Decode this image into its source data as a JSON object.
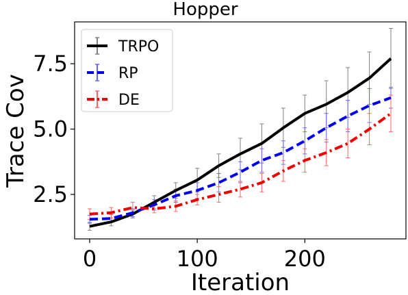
{
  "chart_data": {
    "type": "line",
    "title": "Hopper",
    "xlabel": "Iteration",
    "ylabel": "Trace Cov",
    "xlim": [
      -14,
      294
    ],
    "ylim": [
      0.8,
      9.1
    ],
    "xticks": [
      0,
      100,
      200
    ],
    "xtick_labels": [
      "0",
      "100",
      "200"
    ],
    "yticks": [
      2.5,
      5.0,
      7.5
    ],
    "ytick_labels": [
      "2.5",
      "5.0",
      "7.5"
    ],
    "grid": false,
    "legend_position": "top-left",
    "x": [
      0,
      20,
      40,
      60,
      80,
      100,
      120,
      140,
      160,
      180,
      200,
      220,
      240,
      260,
      280
    ],
    "series": [
      {
        "name": "TRPO",
        "color": "#000000",
        "errcolor": "#808080",
        "dash": "solid",
        "values": [
          1.28,
          1.45,
          1.75,
          2.2,
          2.65,
          3.05,
          3.6,
          4.05,
          4.45,
          5.05,
          5.6,
          5.95,
          6.4,
          6.95,
          7.7
        ],
        "errors": [
          0.15,
          0.15,
          0.15,
          0.25,
          0.3,
          0.45,
          0.45,
          0.6,
          0.75,
          0.75,
          0.7,
          0.9,
          0.95,
          1.0,
          1.15
        ]
      },
      {
        "name": "RP",
        "color": "#0000ee",
        "errcolor": "#6666ff",
        "dash": "dashed",
        "values": [
          1.55,
          1.58,
          1.8,
          2.1,
          2.45,
          2.65,
          2.95,
          3.35,
          3.8,
          4.1,
          4.55,
          5.05,
          5.5,
          5.9,
          6.2
        ],
        "errors": [
          0.15,
          0.15,
          0.15,
          0.2,
          0.25,
          0.3,
          0.35,
          0.4,
          0.45,
          0.45,
          0.5,
          0.55,
          0.6,
          0.65,
          0.4
        ]
      },
      {
        "name": "DE",
        "color": "#ee0000",
        "errcolor": "#ff6666",
        "dash": "dashdot",
        "values": [
          1.75,
          1.8,
          2.0,
          1.95,
          2.05,
          2.3,
          2.5,
          2.7,
          2.95,
          3.4,
          3.8,
          4.1,
          4.45,
          5.0,
          5.6
        ],
        "errors": [
          0.2,
          0.2,
          0.2,
          0.15,
          0.2,
          0.2,
          0.3,
          0.3,
          0.35,
          0.4,
          0.45,
          0.5,
          0.55,
          0.6,
          0.7
        ]
      }
    ]
  }
}
